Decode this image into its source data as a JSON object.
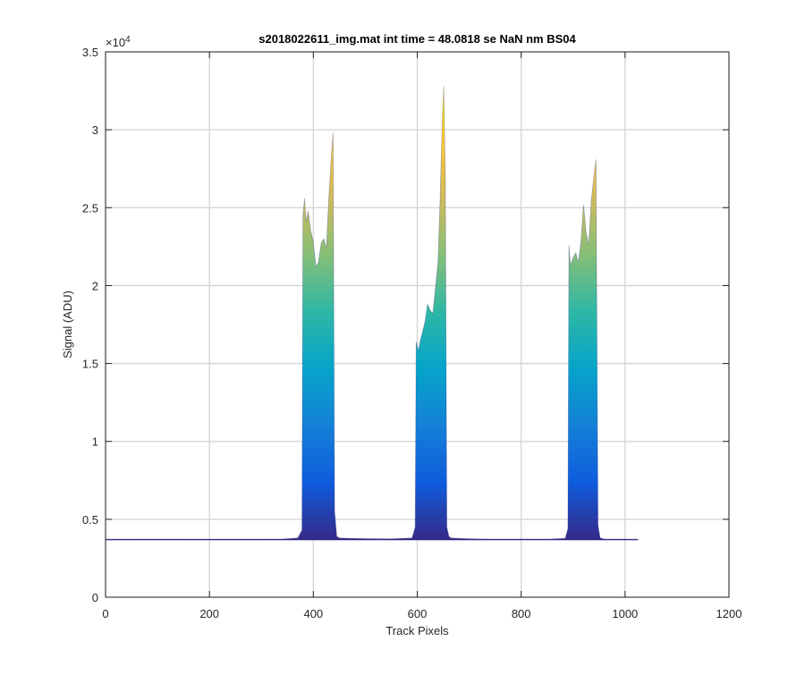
{
  "chart_data": {
    "type": "area",
    "title": "s2018022611_img.mat int time = 48.0818 se  NaN nm BS04",
    "xlabel": "Track Pixels",
    "ylabel": "Signal (ADU)",
    "xlim": [
      0,
      1200
    ],
    "ylim": [
      0,
      35000
    ],
    "x_ticks": [
      0,
      200,
      400,
      600,
      800,
      1000,
      1200
    ],
    "y_ticks": [
      0,
      0.5,
      1,
      1.5,
      2,
      2.5,
      3,
      3.5
    ],
    "y_exponent_base": "×10",
    "y_exponent_power": "4",
    "y_scale_factor": 10000,
    "grid": true,
    "colormap": [
      "#352a87",
      "#0f5cdd",
      "#1481d6",
      "#06a4ca",
      "#2eb7a4",
      "#87bf77",
      "#d1bb59",
      "#fec832",
      "#f9fb0e"
    ],
    "series": [
      {
        "x": [
          0,
          50,
          100,
          150,
          200,
          250,
          300,
          340,
          370,
          378,
          380,
          383,
          386,
          390,
          395,
          400,
          405,
          410,
          415,
          420,
          425,
          430,
          435,
          438,
          441,
          445,
          450,
          500,
          550,
          590,
          596,
          598,
          602,
          606,
          610,
          615,
          620,
          625,
          630,
          635,
          640,
          644,
          648,
          651,
          654,
          657,
          661,
          665,
          700,
          750,
          800,
          850,
          885,
          890,
          892,
          895,
          900,
          905,
          910,
          915,
          920,
          925,
          930,
          935,
          940,
          944,
          948,
          952,
          960,
          1000,
          1025
        ],
        "y": [
          3700,
          3710,
          3720,
          3710,
          3700,
          3700,
          3710,
          3730,
          3800,
          4300,
          24500,
          25600,
          24100,
          24800,
          23500,
          22800,
          21200,
          21500,
          22700,
          23000,
          22400,
          25800,
          28500,
          29800,
          5500,
          3900,
          3800,
          3760,
          3740,
          3800,
          4500,
          16400,
          15800,
          16500,
          17000,
          17700,
          18800,
          18400,
          18200,
          19800,
          21500,
          25600,
          30500,
          32800,
          27000,
          4500,
          3900,
          3800,
          3750,
          3720,
          3720,
          3720,
          3780,
          4400,
          22600,
          21300,
          21800,
          22100,
          21500,
          22800,
          25200,
          23400,
          22600,
          25500,
          27000,
          28100,
          4600,
          3800,
          3730,
          3710,
          3700
        ]
      }
    ]
  }
}
